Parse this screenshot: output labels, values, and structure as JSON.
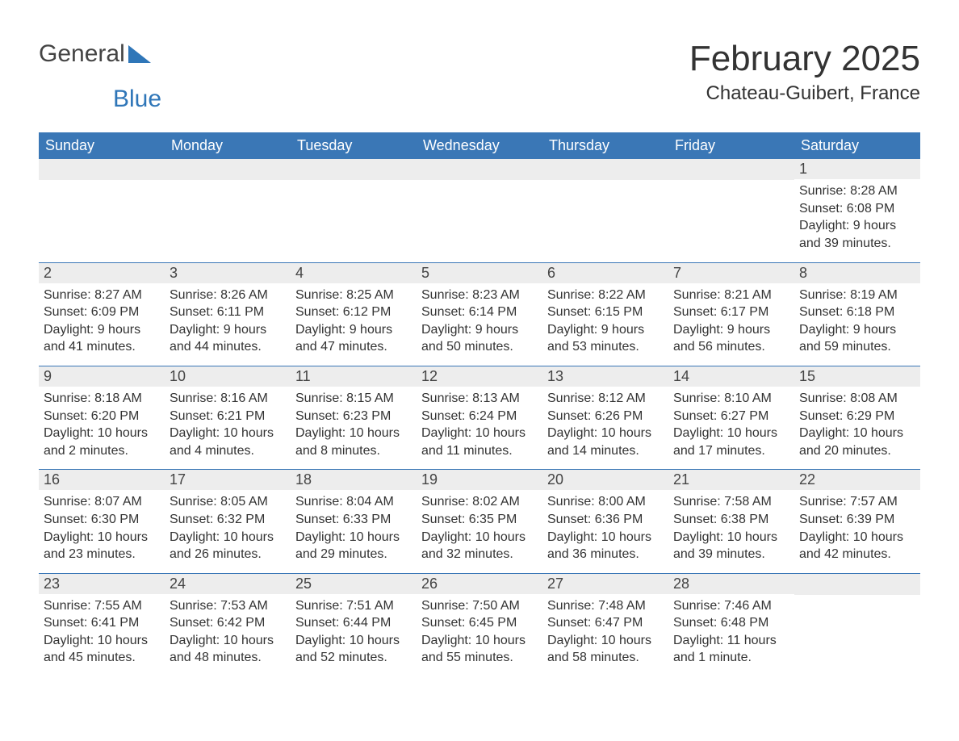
{
  "logo": {
    "text_general": "General",
    "text_blue": "Blue"
  },
  "title": "February 2025",
  "location": "Chateau-Guibert, France",
  "colors": {
    "header_bg": "#3a77b6",
    "header_text": "#ffffff",
    "datebar_bg": "#ededed",
    "row_border": "#3a77b6",
    "body_text": "#333333",
    "logo_gray": "#444444",
    "logo_blue": "#2f76b8",
    "page_bg": "#ffffff"
  },
  "font": {
    "family": "Arial, Helvetica, sans-serif",
    "title_size_pt": 33,
    "location_size_pt": 18,
    "body_size_pt": 12,
    "header_size_pt": 14
  },
  "day_labels": [
    "Sunday",
    "Monday",
    "Tuesday",
    "Wednesday",
    "Thursday",
    "Friday",
    "Saturday"
  ],
  "labels": {
    "sunrise": "Sunrise:",
    "sunset": "Sunset:",
    "daylight": "Daylight:"
  },
  "weeks": [
    [
      null,
      null,
      null,
      null,
      null,
      null,
      {
        "n": "1",
        "sr": "8:28 AM",
        "ss": "6:08 PM",
        "dl": "9 hours and 39 minutes."
      }
    ],
    [
      {
        "n": "2",
        "sr": "8:27 AM",
        "ss": "6:09 PM",
        "dl": "9 hours and 41 minutes."
      },
      {
        "n": "3",
        "sr": "8:26 AM",
        "ss": "6:11 PM",
        "dl": "9 hours and 44 minutes."
      },
      {
        "n": "4",
        "sr": "8:25 AM",
        "ss": "6:12 PM",
        "dl": "9 hours and 47 minutes."
      },
      {
        "n": "5",
        "sr": "8:23 AM",
        "ss": "6:14 PM",
        "dl": "9 hours and 50 minutes."
      },
      {
        "n": "6",
        "sr": "8:22 AM",
        "ss": "6:15 PM",
        "dl": "9 hours and 53 minutes."
      },
      {
        "n": "7",
        "sr": "8:21 AM",
        "ss": "6:17 PM",
        "dl": "9 hours and 56 minutes."
      },
      {
        "n": "8",
        "sr": "8:19 AM",
        "ss": "6:18 PM",
        "dl": "9 hours and 59 minutes."
      }
    ],
    [
      {
        "n": "9",
        "sr": "8:18 AM",
        "ss": "6:20 PM",
        "dl": "10 hours and 2 minutes."
      },
      {
        "n": "10",
        "sr": "8:16 AM",
        "ss": "6:21 PM",
        "dl": "10 hours and 4 minutes."
      },
      {
        "n": "11",
        "sr": "8:15 AM",
        "ss": "6:23 PM",
        "dl": "10 hours and 8 minutes."
      },
      {
        "n": "12",
        "sr": "8:13 AM",
        "ss": "6:24 PM",
        "dl": "10 hours and 11 minutes."
      },
      {
        "n": "13",
        "sr": "8:12 AM",
        "ss": "6:26 PM",
        "dl": "10 hours and 14 minutes."
      },
      {
        "n": "14",
        "sr": "8:10 AM",
        "ss": "6:27 PM",
        "dl": "10 hours and 17 minutes."
      },
      {
        "n": "15",
        "sr": "8:08 AM",
        "ss": "6:29 PM",
        "dl": "10 hours and 20 minutes."
      }
    ],
    [
      {
        "n": "16",
        "sr": "8:07 AM",
        "ss": "6:30 PM",
        "dl": "10 hours and 23 minutes."
      },
      {
        "n": "17",
        "sr": "8:05 AM",
        "ss": "6:32 PM",
        "dl": "10 hours and 26 minutes."
      },
      {
        "n": "18",
        "sr": "8:04 AM",
        "ss": "6:33 PM",
        "dl": "10 hours and 29 minutes."
      },
      {
        "n": "19",
        "sr": "8:02 AM",
        "ss": "6:35 PM",
        "dl": "10 hours and 32 minutes."
      },
      {
        "n": "20",
        "sr": "8:00 AM",
        "ss": "6:36 PM",
        "dl": "10 hours and 36 minutes."
      },
      {
        "n": "21",
        "sr": "7:58 AM",
        "ss": "6:38 PM",
        "dl": "10 hours and 39 minutes."
      },
      {
        "n": "22",
        "sr": "7:57 AM",
        "ss": "6:39 PM",
        "dl": "10 hours and 42 minutes."
      }
    ],
    [
      {
        "n": "23",
        "sr": "7:55 AM",
        "ss": "6:41 PM",
        "dl": "10 hours and 45 minutes."
      },
      {
        "n": "24",
        "sr": "7:53 AM",
        "ss": "6:42 PM",
        "dl": "10 hours and 48 minutes."
      },
      {
        "n": "25",
        "sr": "7:51 AM",
        "ss": "6:44 PM",
        "dl": "10 hours and 52 minutes."
      },
      {
        "n": "26",
        "sr": "7:50 AM",
        "ss": "6:45 PM",
        "dl": "10 hours and 55 minutes."
      },
      {
        "n": "27",
        "sr": "7:48 AM",
        "ss": "6:47 PM",
        "dl": "10 hours and 58 minutes."
      },
      {
        "n": "28",
        "sr": "7:46 AM",
        "ss": "6:48 PM",
        "dl": "11 hours and 1 minute."
      },
      null
    ]
  ]
}
